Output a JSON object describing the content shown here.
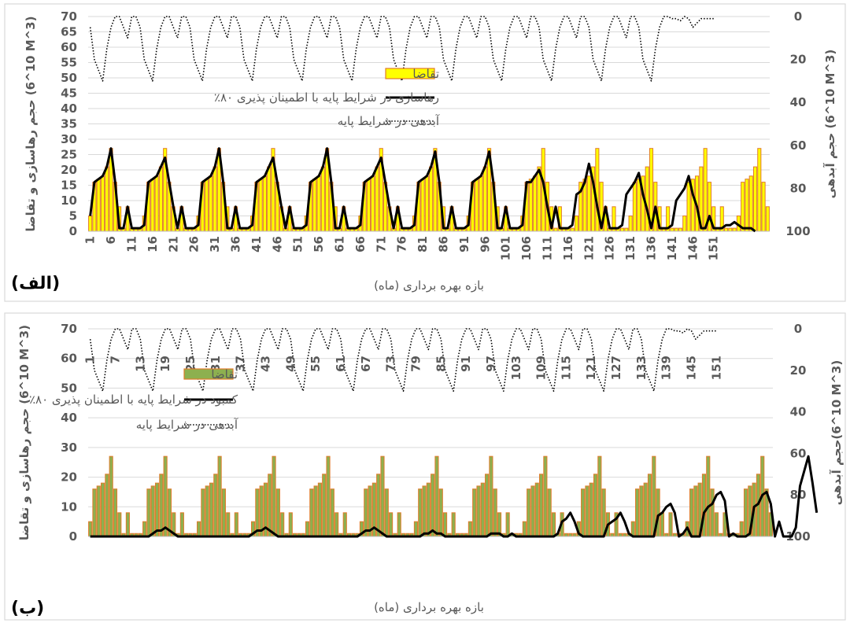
{
  "chart_data": [
    {
      "type": "bar",
      "panel_label": "(الف)",
      "xlabel": "بازه بهره برداری (ماه)",
      "ylabel_left": "حجم رهاسازی و تقاضا (10^6 M^3)",
      "ylabel_right": "حجم آبدهی (10^6 M^3)",
      "ylim_left": [
        0,
        70
      ],
      "yticks_left": [
        0,
        5,
        10,
        15,
        20,
        25,
        30,
        35,
        40,
        45,
        50,
        55,
        60,
        65,
        70
      ],
      "ylim_right": [
        0,
        100
      ],
      "right_axis_inverted": true,
      "yticks_right": [
        0,
        20,
        40,
        60,
        80,
        100
      ],
      "xticks": [
        "1",
        "6",
        "11",
        "16",
        "21",
        "26",
        "31",
        "36",
        "41",
        "46",
        "51",
        "56",
        "61",
        "66",
        "71",
        "76",
        "81",
        "86",
        "91",
        "96",
        "101",
        "106",
        "111",
        "116",
        "121",
        "126",
        "131",
        "136",
        "141",
        "146",
        "151"
      ],
      "grid": true,
      "legend_position": "center",
      "series": [
        {
          "name": "تقاضا",
          "kind": "bar",
          "color": "#FFFF00",
          "edge": "#E07B2A",
          "values": [
            5,
            16,
            17,
            18,
            21,
            27,
            16,
            8,
            1,
            8,
            1,
            1,
            1,
            5,
            16,
            17,
            18,
            21,
            27,
            16,
            8,
            1,
            8,
            1,
            1,
            1,
            5,
            16,
            17,
            18,
            21,
            27,
            16,
            8,
            1,
            8,
            1,
            1,
            1,
            5,
            16,
            17,
            18,
            21,
            27,
            16,
            8,
            1,
            8,
            1,
            1,
            1,
            5,
            16,
            17,
            18,
            21,
            27,
            16,
            8,
            1,
            8,
            1,
            1,
            1,
            5,
            16,
            17,
            18,
            21,
            27,
            16,
            8,
            1,
            8,
            1,
            1,
            1,
            5,
            16,
            17,
            18,
            21,
            27,
            16,
            8,
            1,
            8,
            1,
            1,
            1,
            5,
            16,
            17,
            18,
            21,
            27,
            16,
            8,
            1,
            8,
            1,
            1,
            1,
            5,
            16,
            17,
            18,
            21,
            27,
            16,
            8,
            1,
            8,
            1,
            1,
            1,
            5,
            16,
            17,
            18,
            21,
            27,
            16,
            8,
            1,
            8,
            1,
            1,
            1,
            5,
            16,
            17,
            18,
            21,
            27,
            16,
            8,
            1,
            8,
            1,
            1,
            1,
            5,
            16,
            17,
            18,
            21,
            27,
            16,
            8,
            1,
            8,
            1,
            1,
            1,
            5,
            16,
            17,
            18,
            21,
            27,
            16,
            8
          ]
        },
        {
          "name": "رهاسازی در شرایط پایه با اطمینان پذیری ۸۰٪",
          "kind": "line",
          "color": "#000000",
          "values": [
            5,
            16,
            17,
            18,
            21,
            27,
            16,
            1,
            1,
            8,
            1,
            1,
            1,
            2,
            16,
            17,
            18,
            21,
            24,
            16,
            8,
            1,
            8,
            1,
            1,
            1,
            2,
            16,
            17,
            18,
            21,
            27,
            16,
            1,
            1,
            8,
            1,
            1,
            1,
            2,
            16,
            17,
            18,
            21,
            24,
            16,
            8,
            1,
            8,
            1,
            1,
            1,
            2,
            16,
            17,
            18,
            21,
            27,
            16,
            1,
            1,
            8,
            1,
            1,
            1,
            2,
            16,
            17,
            18,
            21,
            24,
            16,
            8,
            1,
            8,
            1,
            1,
            1,
            2,
            16,
            17,
            18,
            21,
            26,
            16,
            1,
            1,
            8,
            1,
            1,
            1,
            2,
            16,
            17,
            18,
            21,
            26,
            16,
            1,
            1,
            8,
            1,
            1,
            1,
            2,
            16,
            16,
            18,
            20,
            16,
            8,
            1,
            8,
            1,
            1,
            1,
            2,
            12,
            13,
            16,
            22,
            16,
            8,
            1,
            8,
            1,
            1,
            1,
            2,
            12,
            14,
            16,
            19,
            12,
            7,
            1,
            8,
            1,
            1,
            1,
            2,
            10,
            12,
            14,
            18,
            12,
            8,
            1,
            1,
            5,
            1,
            1,
            1,
            2,
            2,
            3,
            2,
            1,
            1,
            1,
            0
          ]
        },
        {
          "name": "آبدهی در شرایط پایه",
          "kind": "line",
          "dash": "dotted",
          "color": "#000000",
          "axis": "right",
          "values": [
            5,
            20,
            25,
            30,
            15,
            5,
            0,
            0,
            5,
            10,
            0,
            0,
            5,
            20,
            25,
            30,
            15,
            5,
            0,
            0,
            5,
            10,
            0,
            0,
            5,
            20,
            25,
            30,
            15,
            5,
            0,
            0,
            5,
            10,
            0,
            0,
            5,
            20,
            25,
            30,
            15,
            5,
            0,
            0,
            5,
            10,
            0,
            0,
            5,
            20,
            25,
            30,
            15,
            5,
            0,
            0,
            5,
            10,
            0,
            0,
            5,
            20,
            25,
            30,
            15,
            5,
            0,
            0,
            5,
            10,
            0,
            0,
            5,
            20,
            25,
            30,
            15,
            5,
            0,
            0,
            5,
            10,
            0,
            0,
            5,
            20,
            25,
            30,
            15,
            5,
            0,
            0,
            5,
            10,
            0,
            0,
            5,
            20,
            25,
            30,
            15,
            5,
            0,
            0,
            5,
            10,
            0,
            0,
            5,
            20,
            25,
            30,
            15,
            5,
            0,
            0,
            5,
            10,
            0,
            0,
            5,
            20,
            25,
            30,
            15,
            5,
            0,
            0,
            5,
            10,
            0,
            0,
            5,
            20,
            25,
            30,
            15,
            5,
            0,
            0,
            1,
            1,
            2,
            0,
            1,
            5,
            3,
            1,
            1,
            1,
            1
          ]
        }
      ]
    },
    {
      "type": "bar",
      "panel_label": "(ب)",
      "xlabel": "بازه بهره برداری (ماه)",
      "ylabel_left": "حجم رهاسازی و تقاضا (10^6 M^3)",
      "ylabel_right": "حجم آبدهی(10^6 M^3)",
      "ylim_left": [
        0,
        70
      ],
      "yticks_left": [
        0,
        10,
        20,
        30,
        40,
        50,
        60,
        70
      ],
      "ylim_right": [
        0,
        100
      ],
      "right_axis_inverted": true,
      "yticks_right": [
        0,
        20,
        40,
        60,
        80,
        100
      ],
      "xticks": [
        "1",
        "7",
        "13",
        "19",
        "25",
        "31",
        "37",
        "43",
        "49",
        "55",
        "61",
        "67",
        "73",
        "79",
        "85",
        "91",
        "97",
        "103",
        "109",
        "115",
        "121",
        "127",
        "133",
        "139",
        "145",
        "151"
      ],
      "grid": true,
      "legend_position": "center",
      "series": [
        {
          "name": "تقاضا",
          "kind": "bar",
          "color": "#8DB04F",
          "edge": "#E07B2A",
          "values": [
            5,
            16,
            17,
            18,
            21,
            27,
            16,
            8,
            1,
            8,
            1,
            1,
            1,
            5,
            16,
            17,
            18,
            21,
            27,
            16,
            8,
            1,
            8,
            1,
            1,
            1,
            5,
            16,
            17,
            18,
            21,
            27,
            16,
            8,
            1,
            8,
            1,
            1,
            1,
            5,
            16,
            17,
            18,
            21,
            27,
            16,
            8,
            1,
            8,
            1,
            1,
            1,
            5,
            16,
            17,
            18,
            21,
            27,
            16,
            8,
            1,
            8,
            1,
            1,
            1,
            5,
            16,
            17,
            18,
            21,
            27,
            16,
            8,
            1,
            8,
            1,
            1,
            1,
            5,
            16,
            17,
            18,
            21,
            27,
            16,
            8,
            1,
            8,
            1,
            1,
            1,
            5,
            16,
            17,
            18,
            21,
            27,
            16,
            8,
            1,
            8,
            1,
            1,
            1,
            5,
            16,
            17,
            18,
            21,
            27,
            16,
            8,
            1,
            8,
            1,
            1,
            1,
            5,
            16,
            17,
            18,
            21,
            27,
            16,
            8,
            1,
            8,
            1,
            1,
            1,
            5,
            16,
            17,
            18,
            21,
            27,
            16,
            8,
            1,
            8,
            1,
            1,
            1,
            5,
            16,
            17,
            18,
            21,
            27,
            16,
            8,
            1,
            8,
            1,
            1,
            1,
            5,
            16,
            17,
            18,
            21,
            27,
            16,
            8
          ]
        },
        {
          "name": "کمبود در شرایط پایه با اطمینان پذیری ۸۰٪",
          "kind": "line",
          "color": "#000000",
          "values": [
            0,
            0,
            0,
            0,
            0,
            0,
            0,
            0,
            0,
            0,
            0,
            0,
            0,
            0,
            0,
            1,
            2,
            2,
            3,
            2,
            1,
            0,
            0,
            0,
            0,
            0,
            0,
            0,
            0,
            0,
            0,
            0,
            0,
            0,
            0,
            0,
            0,
            0,
            0,
            1,
            2,
            2,
            3,
            2,
            1,
            0,
            0,
            0,
            0,
            0,
            0,
            0,
            0,
            0,
            0,
            0,
            0,
            0,
            0,
            0,
            0,
            0,
            0,
            0,
            0,
            1,
            2,
            2,
            3,
            2,
            1,
            0,
            0,
            0,
            0,
            0,
            0,
            0,
            0,
            0,
            1,
            1,
            2,
            1,
            1,
            0,
            0,
            0,
            0,
            0,
            0,
            0,
            0,
            0,
            0,
            0,
            1,
            1,
            1,
            0,
            0,
            1,
            0,
            0,
            0,
            0,
            0,
            0,
            0,
            0,
            0,
            0,
            1,
            5,
            6,
            8,
            5,
            1,
            0,
            0,
            0,
            0,
            0,
            0,
            4,
            5,
            6,
            8,
            5,
            1,
            0,
            0,
            0,
            0,
            0,
            0,
            7,
            8,
            10,
            11,
            8,
            0,
            1,
            3,
            0,
            0,
            0,
            8,
            10,
            11,
            14,
            15,
            12,
            0,
            1,
            0,
            0,
            0,
            1,
            10,
            11,
            14,
            15,
            11,
            0,
            5,
            0,
            0,
            0,
            3,
            17,
            22,
            27,
            18,
            8
          ]
        },
        {
          "name": "آبدهی در شرایط پایه",
          "kind": "line",
          "dash": "dotted",
          "color": "#000000",
          "axis": "right",
          "values": [
            5,
            20,
            25,
            30,
            15,
            5,
            0,
            0,
            5,
            10,
            0,
            0,
            5,
            20,
            25,
            30,
            15,
            5,
            0,
            0,
            5,
            10,
            0,
            0,
            5,
            20,
            25,
            30,
            15,
            5,
            0,
            0,
            5,
            10,
            0,
            0,
            5,
            20,
            25,
            30,
            15,
            5,
            0,
            0,
            5,
            10,
            0,
            0,
            5,
            20,
            25,
            30,
            15,
            5,
            0,
            0,
            5,
            10,
            0,
            0,
            5,
            20,
            25,
            30,
            15,
            5,
            0,
            0,
            5,
            10,
            0,
            0,
            5,
            20,
            25,
            30,
            15,
            5,
            0,
            0,
            5,
            10,
            0,
            0,
            5,
            20,
            25,
            30,
            15,
            5,
            0,
            0,
            5,
            10,
            0,
            0,
            5,
            20,
            25,
            30,
            15,
            5,
            0,
            0,
            5,
            10,
            0,
            0,
            5,
            20,
            25,
            30,
            15,
            5,
            0,
            0,
            5,
            10,
            0,
            0,
            5,
            20,
            25,
            30,
            15,
            5,
            0,
            0,
            5,
            10,
            0,
            0,
            5,
            20,
            25,
            30,
            15,
            5,
            0,
            0,
            1,
            1,
            2,
            0,
            1,
            5,
            3,
            1,
            1,
            1,
            1
          ]
        }
      ]
    }
  ]
}
